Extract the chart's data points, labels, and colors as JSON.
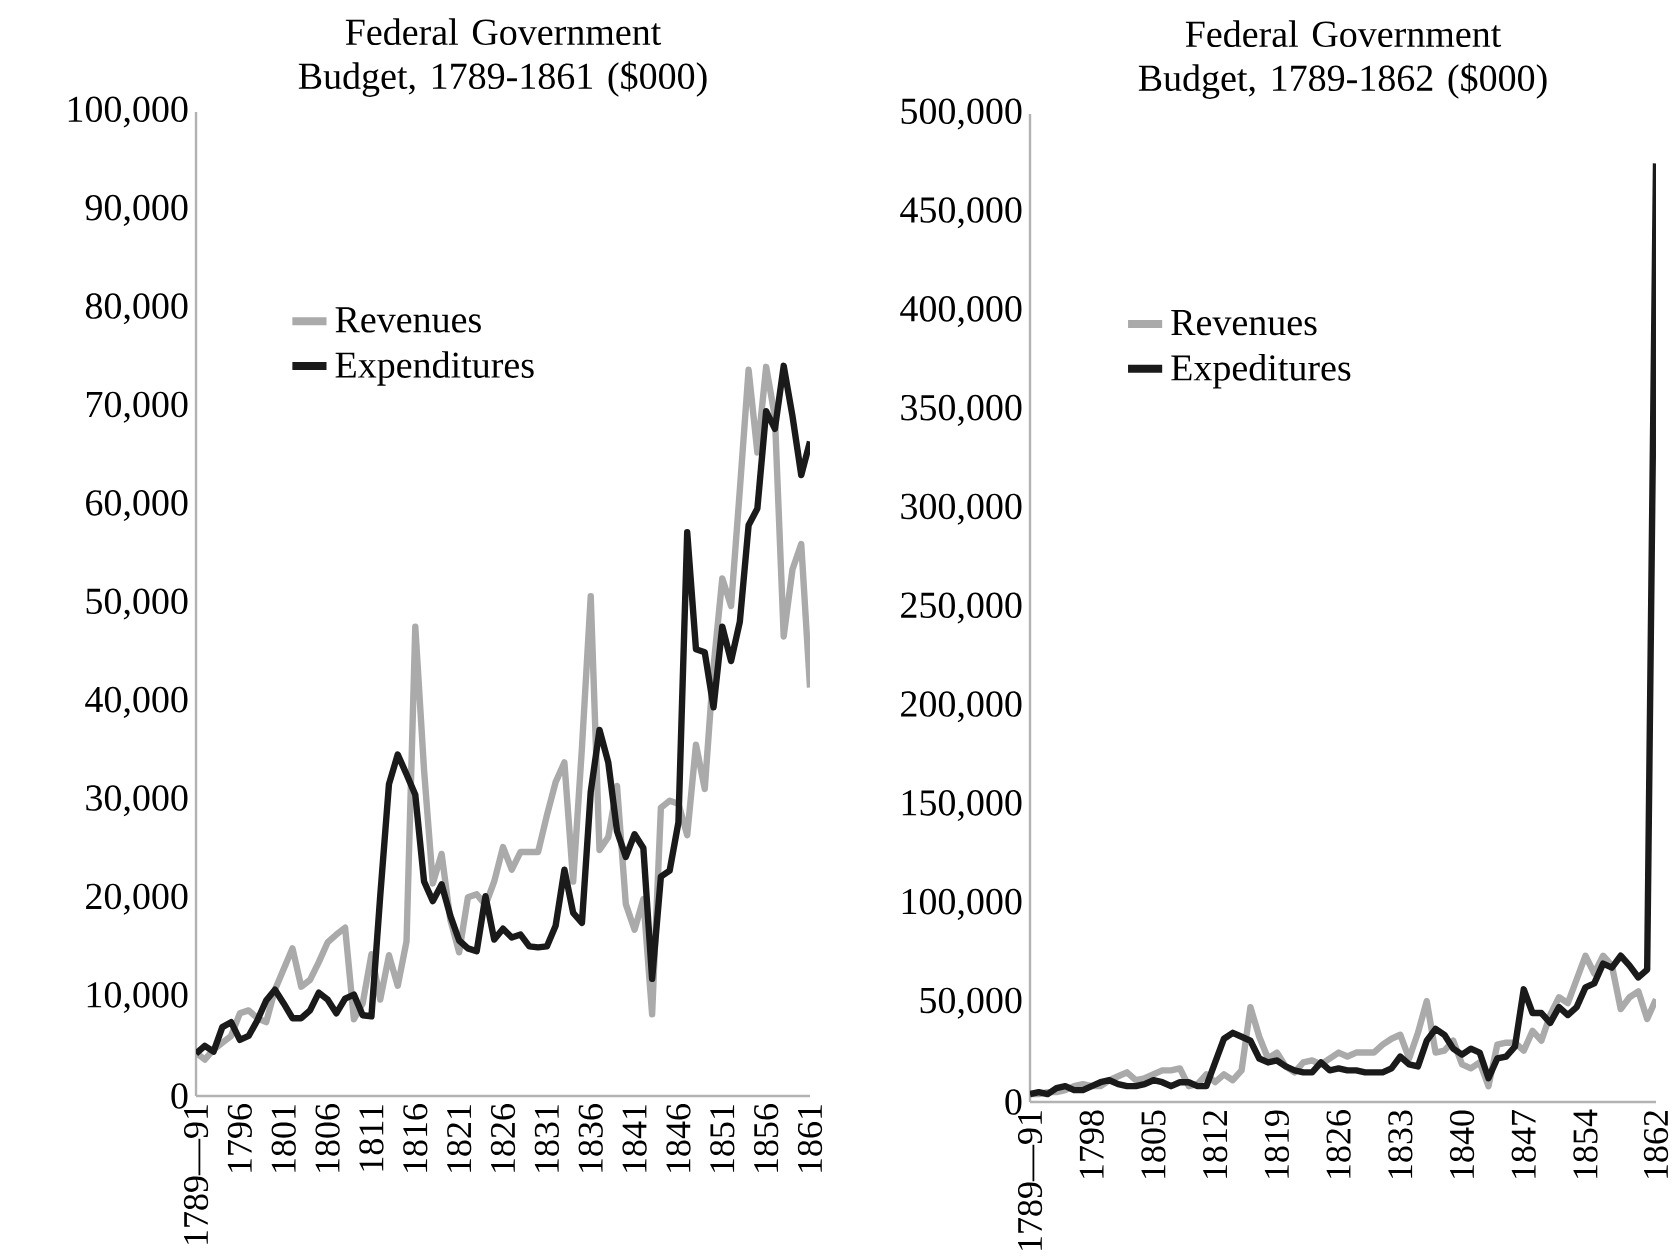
{
  "chart_data": [
    {
      "type": "line",
      "title": "Federal Government Budget, 1789-1861 ($000)",
      "categories": [
        "1789—91",
        null,
        null,
        null,
        null,
        "1796",
        null,
        null,
        null,
        null,
        "1801",
        null,
        null,
        null,
        null,
        "1806",
        null,
        null,
        null,
        null,
        "1811",
        null,
        null,
        null,
        null,
        "1816",
        null,
        null,
        null,
        null,
        "1821",
        null,
        null,
        null,
        null,
        "1826",
        null,
        null,
        null,
        null,
        "1831",
        null,
        null,
        null,
        null,
        "1836",
        null,
        null,
        null,
        null,
        "1841",
        null,
        null,
        null,
        null,
        "1846",
        null,
        null,
        null,
        null,
        "1851",
        null,
        null,
        null,
        null,
        "1856",
        null,
        null,
        null,
        null,
        "1861"
      ],
      "series": [
        {
          "name": "Revenues",
          "color": "#aaaaaa",
          "values": [
            4400,
            3700,
            4700,
            5400,
            6100,
            8400,
            8700,
            7900,
            7500,
            10800,
            12900,
            15000,
            11100,
            11800,
            13600,
            15600,
            16400,
            17100,
            7800,
            9400,
            14400,
            9800,
            14300,
            11200,
            15700,
            47700,
            33100,
            21600,
            24600,
            17900,
            14600,
            20200,
            20500,
            19400,
            21800,
            25300,
            23000,
            24800,
            24800,
            24800,
            28500,
            31900,
            33900,
            21800,
            35400,
            50800,
            25000,
            26300,
            31500,
            19500,
            16900,
            20000,
            8300,
            29300,
            30000,
            29700,
            26500,
            35700,
            31200,
            43600,
            52600,
            49800,
            61600,
            73800,
            65400,
            74100,
            69000,
            46700,
            53500,
            56100,
            41500
          ]
        },
        {
          "name": "Expenditures",
          "color": "#1a1a1a",
          "values": [
            4300,
            5100,
            4500,
            7000,
            7500,
            5700,
            6100,
            7700,
            9700,
            10800,
            9400,
            7900,
            7900,
            8700,
            10500,
            9800,
            8400,
            9900,
            10300,
            8200,
            8100,
            20300,
            31700,
            34700,
            32700,
            30600,
            21800,
            19800,
            21500,
            18300,
            15800,
            15000,
            14700,
            20300,
            15900,
            17000,
            16100,
            16400,
            15200,
            15100,
            15200,
            17300,
            23000,
            18600,
            17600,
            30900,
            37200,
            33900,
            26900,
            24300,
            26600,
            25200,
            11900,
            22300,
            22900,
            27800,
            57300,
            45400,
            45100,
            39500,
            47700,
            44200,
            48200,
            58000,
            59700,
            69600,
            67800,
            74200,
            69100,
            63100,
            66500
          ]
        }
      ],
      "ylim": [
        0,
        100000
      ],
      "yticks": [
        0,
        {
          "value": 10000,
          "label": "10,000"
        },
        {
          "value": 20000,
          "label": "20,000"
        },
        {
          "value": 30000,
          "label": "30,000"
        },
        {
          "value": 40000,
          "label": "40,000"
        },
        {
          "value": 50000,
          "label": "50,000"
        },
        {
          "value": 60000,
          "label": "60,000"
        },
        {
          "value": 70000,
          "label": "70,000"
        },
        {
          "value": 80000,
          "label": "80,000"
        },
        {
          "value": 90000,
          "label": "90,000"
        },
        {
          "value": 100000,
          "label": "100,000"
        }
      ],
      "grid": false,
      "legend": "top left",
      "marker": "none",
      "line_style": "solid"
    },
    {
      "type": "line",
      "title": "Federal Government Budget, 1789-1862 ($000)",
      "categories": [
        "1789—91",
        null,
        null,
        null,
        null,
        null,
        null,
        "1798",
        null,
        null,
        null,
        null,
        null,
        null,
        "1805",
        null,
        null,
        null,
        null,
        null,
        null,
        "1812",
        null,
        null,
        null,
        null,
        null,
        null,
        "1819",
        null,
        null,
        null,
        null,
        null,
        null,
        "1826",
        null,
        null,
        null,
        null,
        null,
        null,
        "1833",
        null,
        null,
        null,
        null,
        null,
        null,
        "1840",
        null,
        null,
        null,
        null,
        null,
        null,
        "1847",
        null,
        null,
        null,
        null,
        null,
        null,
        "1854",
        null,
        null,
        null,
        null,
        null,
        null,
        null,
        "1862"
      ],
      "series": [
        {
          "name": "Revenues",
          "color": "#aaaaaa",
          "values": [
            4000,
            4000,
            5000,
            5000,
            6000,
            8000,
            9000,
            8000,
            8000,
            11000,
            13000,
            15000,
            11000,
            12000,
            14000,
            16000,
            16000,
            17000,
            8000,
            9000,
            14000,
            10000,
            14000,
            11000,
            16000,
            48000,
            33000,
            22000,
            25000,
            18000,
            15000,
            20000,
            21000,
            19000,
            22000,
            25000,
            23000,
            25000,
            25000,
            25000,
            29000,
            32000,
            34000,
            22000,
            35000,
            51000,
            25000,
            26000,
            31000,
            19000,
            17000,
            20000,
            8000,
            29000,
            30000,
            30000,
            26000,
            36000,
            31000,
            44000,
            53000,
            50000,
            62000,
            74000,
            65000,
            74000,
            69000,
            47000,
            53000,
            56000,
            42000,
            52000
          ]
        },
        {
          "name": "Expeditures",
          "color": "#1a1a1a",
          "values": [
            4000,
            5000,
            4000,
            7000,
            8000,
            6000,
            6000,
            8000,
            10000,
            11000,
            9000,
            8000,
            8000,
            9000,
            11000,
            10000,
            8000,
            10000,
            10000,
            8000,
            8000,
            20000,
            32000,
            35000,
            33000,
            31000,
            22000,
            20000,
            21000,
            18000,
            16000,
            15000,
            15000,
            20000,
            16000,
            17000,
            16000,
            16000,
            15000,
            15000,
            15000,
            17000,
            23000,
            19000,
            18000,
            31000,
            37000,
            34000,
            27000,
            24000,
            27000,
            25000,
            12000,
            22000,
            23000,
            28000,
            57000,
            45000,
            45000,
            40000,
            48000,
            44000,
            48000,
            58000,
            60000,
            70000,
            68000,
            74000,
            69000,
            63000,
            67000,
            475000
          ]
        }
      ],
      "ylim": [
        0,
        500000
      ],
      "yticks": [
        0,
        {
          "value": 50000,
          "label": "50,000"
        },
        {
          "value": 100000,
          "label": "100,000"
        },
        {
          "value": 150000,
          "label": "150,000"
        },
        {
          "value": 200000,
          "label": "200,000"
        },
        {
          "value": 250000,
          "label": "250,000"
        },
        {
          "value": 300000,
          "label": "300,000"
        },
        {
          "value": 350000,
          "label": "350,000"
        },
        {
          "value": 400000,
          "label": "400,000"
        },
        {
          "value": 450000,
          "label": "450,000"
        },
        {
          "value": 500000,
          "label": "500,000"
        }
      ],
      "grid": false,
      "legend": "top left",
      "marker": "none",
      "line_style": "solid"
    }
  ]
}
